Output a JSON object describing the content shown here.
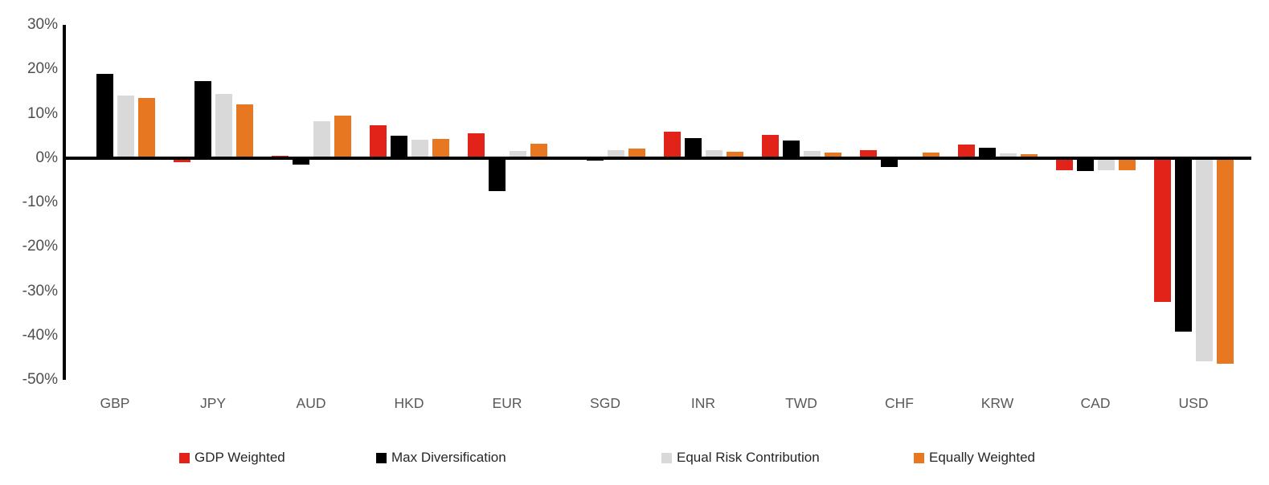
{
  "chart_data": {
    "type": "bar",
    "title": "",
    "xlabel": "",
    "ylabel": "",
    "grid": false,
    "legend_position": "bottom",
    "ylim": [
      -50,
      30
    ],
    "ytick_step": 10,
    "yticks": [
      {
        "value": 30,
        "label": "30%"
      },
      {
        "value": 20,
        "label": "20%"
      },
      {
        "value": 10,
        "label": "10%"
      },
      {
        "value": 0,
        "label": "0%"
      },
      {
        "value": -10,
        "label": "-10%"
      },
      {
        "value": -20,
        "label": "-20%"
      },
      {
        "value": -30,
        "label": "-30%"
      },
      {
        "value": -40,
        "label": "-40%"
      },
      {
        "value": -50,
        "label": "-50%"
      }
    ],
    "categories": [
      "GBP",
      "JPY",
      "AUD",
      "HKD",
      "EUR",
      "SGD",
      "INR",
      "TWD",
      "CHF",
      "KRW",
      "CAD",
      "USD"
    ],
    "series": [
      {
        "name": "GDP Weighted",
        "color": "#e2231a",
        "values": [
          0.4,
          -1.0,
          0.5,
          7.3,
          5.6,
          -0.1,
          5.9,
          5.2,
          1.7,
          3.0,
          -2.8,
          -32.4
        ]
      },
      {
        "name": "Max Diversification",
        "color": "#000000",
        "values": [
          19.0,
          17.3,
          -1.5,
          5.1,
          -7.5,
          -0.5,
          4.5,
          4.0,
          -2.1,
          2.3,
          -2.9,
          -39.2
        ]
      },
      {
        "name": "Equal Risk Contribution",
        "color": "#d9d9d9",
        "values": [
          14.0,
          14.4,
          8.2,
          4.2,
          1.5,
          1.8,
          1.7,
          1.5,
          0.1,
          1.0,
          -2.7,
          -45.9
        ]
      },
      {
        "name": "Equally Weighted",
        "color": "#e87722",
        "values": [
          13.5,
          12.0,
          9.6,
          4.3,
          3.3,
          2.1,
          1.4,
          1.2,
          1.2,
          0.8,
          -2.8,
          -46.3
        ]
      }
    ]
  }
}
